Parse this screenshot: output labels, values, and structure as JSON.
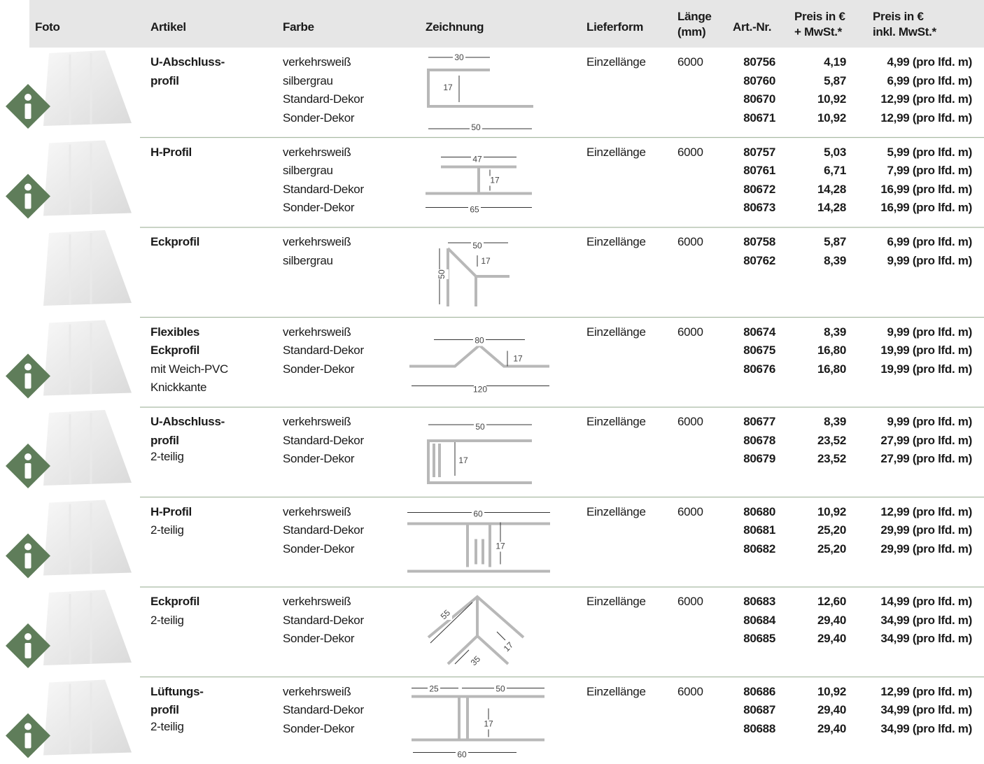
{
  "header": [
    [
      "Foto"
    ],
    [
      "Artikel"
    ],
    [
      "Farbe"
    ],
    [
      "Zeichnung"
    ],
    [
      "Lieferform"
    ],
    [
      "Länge",
      "(mm)"
    ],
    [
      "Art.-Nr."
    ],
    [
      "Preis in €",
      "+ MwSt.*"
    ],
    [
      "Preis in €",
      "inkl. MwSt.*"
    ]
  ],
  "rows": [
    {
      "artikel": {
        "bold": [
          "U-Abschluss-",
          "profil"
        ],
        "sub": []
      },
      "farben": [
        "verkehrsweiß",
        "silbergrau",
        "Standard-Dekor",
        "Sonder-Dekor"
      ],
      "drawing": [
        "30",
        "17",
        "50"
      ],
      "lieferform": "Einzellänge",
      "laenge": "6000",
      "items": [
        {
          "nr": "80756",
          "netto": "4,19",
          "brutto": "4,99 (pro lfd. m)"
        },
        {
          "nr": "80760",
          "netto": "5,87",
          "brutto": "6,99 (pro lfd. m)"
        },
        {
          "nr": "80670",
          "netto": "10,92",
          "brutto": "12,99 (pro lfd. m)"
        },
        {
          "nr": "80671",
          "netto": "10,92",
          "brutto": "12,99 (pro lfd. m)"
        }
      ]
    },
    {
      "artikel": {
        "bold": [
          "H-Profil"
        ],
        "sub": []
      },
      "farben": [
        "verkehrsweiß",
        "silbergrau",
        "Standard-Dekor",
        "Sonder-Dekor"
      ],
      "drawing": [
        "47",
        "17",
        "65"
      ],
      "lieferform": "Einzellänge",
      "laenge": "6000",
      "items": [
        {
          "nr": "80757",
          "netto": "5,03",
          "brutto": "5,99 (pro lfd. m)"
        },
        {
          "nr": "80761",
          "netto": "6,71",
          "brutto": "7,99 (pro lfd. m)"
        },
        {
          "nr": "80672",
          "netto": "14,28",
          "brutto": "16,99 (pro lfd. m)"
        },
        {
          "nr": "80673",
          "netto": "14,28",
          "brutto": "16,99 (pro lfd. m)"
        }
      ]
    },
    {
      "artikel": {
        "bold": [
          "Eckprofil"
        ],
        "sub": []
      },
      "farben": [
        "verkehrsweiß",
        "silbergrau"
      ],
      "drawing": [
        "50",
        "17",
        "50"
      ],
      "lieferform": "Einzellänge",
      "laenge": "6000",
      "items": [
        {
          "nr": "80758",
          "netto": "5,87",
          "brutto": "6,99 (pro lfd. m)"
        },
        {
          "nr": "80762",
          "netto": "8,39",
          "brutto": "9,99 (pro lfd. m)"
        }
      ]
    },
    {
      "artikel": {
        "bold": [
          "Flexibles",
          "Eckprofil"
        ],
        "sub": [
          "mit Weich-PVC",
          "Knickkante"
        ]
      },
      "farben": [
        "verkehrsweiß",
        "Standard-Dekor",
        "Sonder-Dekor"
      ],
      "drawing": [
        "80",
        "17",
        "120"
      ],
      "lieferform": "Einzellänge",
      "laenge": "6000",
      "items": [
        {
          "nr": "80674",
          "netto": "8,39",
          "brutto": "9,99 (pro lfd. m)"
        },
        {
          "nr": "80675",
          "netto": "16,80",
          "brutto": "19,99 (pro lfd. m)"
        },
        {
          "nr": "80676",
          "netto": "16,80",
          "brutto": "19,99 (pro lfd. m)"
        }
      ]
    },
    {
      "artikel": {
        "bold": [
          "U-Abschluss-",
          "profil"
        ],
        "sub": [
          "2-teilig"
        ]
      },
      "farben": [
        "verkehrsweiß",
        "Standard-Dekor",
        "Sonder-Dekor"
      ],
      "drawing": [
        "50",
        "17"
      ],
      "lieferform": "Einzellänge",
      "laenge": "6000",
      "items": [
        {
          "nr": "80677",
          "netto": "8,39",
          "brutto": "9,99 (pro lfd. m)"
        },
        {
          "nr": "80678",
          "netto": "23,52",
          "brutto": "27,99 (pro lfd. m)"
        },
        {
          "nr": "80679",
          "netto": "23,52",
          "brutto": "27,99 (pro lfd. m)"
        }
      ]
    },
    {
      "artikel": {
        "bold": [
          "H-Profil"
        ],
        "sub": [
          "2-teilig"
        ]
      },
      "farben": [
        "verkehrsweiß",
        "Standard-Dekor",
        "Sonder-Dekor"
      ],
      "drawing": [
        "60",
        "17"
      ],
      "lieferform": "Einzellänge",
      "laenge": "6000",
      "items": [
        {
          "nr": "80680",
          "netto": "10,92",
          "brutto": "12,99 (pro lfd. m)"
        },
        {
          "nr": "80681",
          "netto": "25,20",
          "brutto": "29,99 (pro lfd. m)"
        },
        {
          "nr": "80682",
          "netto": "25,20",
          "brutto": "29,99 (pro lfd. m)"
        }
      ]
    },
    {
      "artikel": {
        "bold": [
          "Eckprofil"
        ],
        "sub": [
          "2-teilig"
        ]
      },
      "farben": [
        "verkehrsweiß",
        "Standard-Dekor",
        "Sonder-Dekor"
      ],
      "drawing": [
        "55",
        "17",
        "35"
      ],
      "lieferform": "Einzellänge",
      "laenge": "6000",
      "items": [
        {
          "nr": "80683",
          "netto": "12,60",
          "brutto": "14,99 (pro lfd. m)"
        },
        {
          "nr": "80684",
          "netto": "29,40",
          "brutto": "34,99 (pro lfd. m)"
        },
        {
          "nr": "80685",
          "netto": "29,40",
          "brutto": "34,99 (pro lfd. m)"
        }
      ]
    },
    {
      "artikel": {
        "bold": [
          "Lüftungs-",
          "profil"
        ],
        "sub": [
          "2-teilig"
        ]
      },
      "farben": [
        "verkehrsweiß",
        "Standard-Dekor",
        "Sonder-Dekor"
      ],
      "drawing": [
        "25",
        "50",
        "17",
        "60"
      ],
      "lieferform": "Einzellänge",
      "laenge": "6000",
      "items": [
        {
          "nr": "80686",
          "netto": "10,92",
          "brutto": "12,99 (pro lfd. m)"
        },
        {
          "nr": "80687",
          "netto": "29,40",
          "brutto": "34,99 (pro lfd. m)"
        },
        {
          "nr": "80688",
          "netto": "29,40",
          "brutto": "34,99 (pro lfd. m)"
        }
      ]
    }
  ]
}
